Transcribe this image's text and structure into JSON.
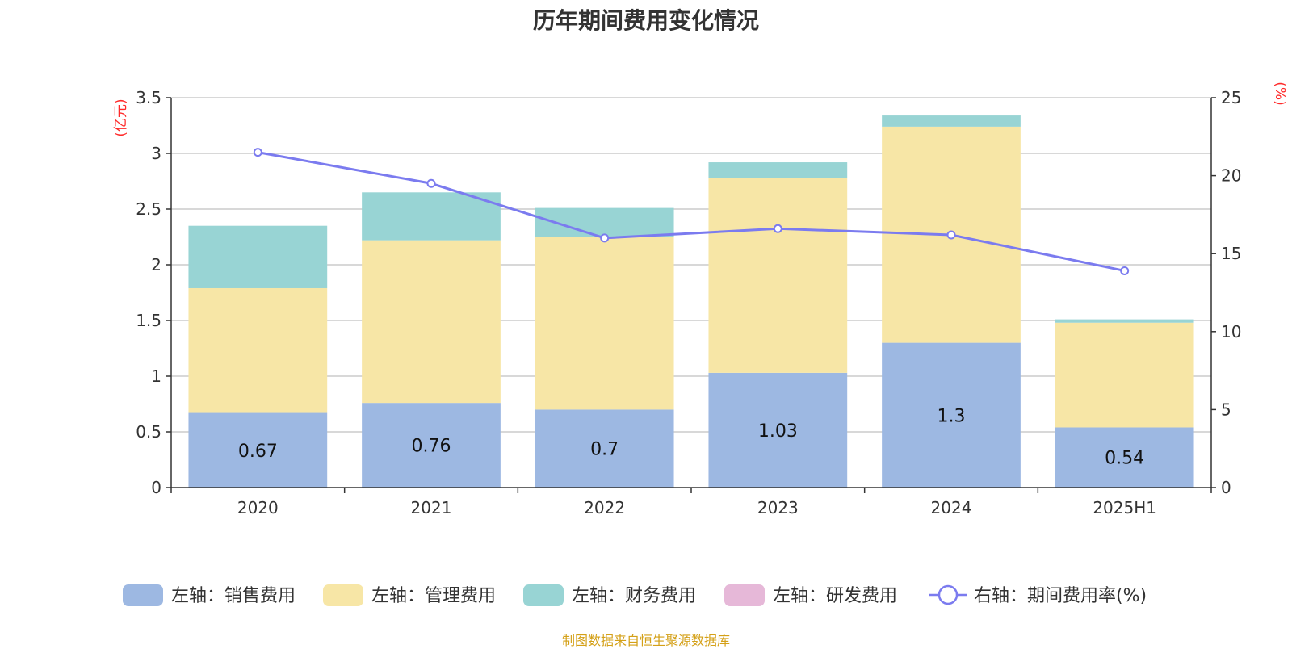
{
  "title": "历年期间费用变化情况",
  "source": "制图数据来自恒生聚源数据库",
  "chart_data": {
    "type": "bar",
    "stacked": true,
    "categories": [
      "2020",
      "2021",
      "2022",
      "2023",
      "2024",
      "2025H1"
    ],
    "left_axis": {
      "unit": "(亿元)",
      "ylim": [
        0,
        3.5
      ],
      "ticks": [
        "0",
        "0.5",
        "1",
        "1.5",
        "2",
        "2.5",
        "3",
        "3.5"
      ]
    },
    "right_axis": {
      "unit": "(%)",
      "ylim": [
        0,
        25
      ],
      "ticks": [
        "0",
        "5",
        "10",
        "15",
        "20",
        "25"
      ]
    },
    "grid": true,
    "legend_position": "bottom",
    "series": [
      {
        "name": "左轴：销售费用",
        "type": "bar",
        "axis": "left",
        "color": "#9db8e2",
        "values": [
          0.67,
          0.76,
          0.7,
          1.03,
          1.3,
          0.54
        ],
        "labels": [
          "0.67",
          "0.76",
          "0.7",
          "1.03",
          "1.3",
          "0.54"
        ]
      },
      {
        "name": "左轴：管理费用",
        "type": "bar",
        "axis": "left",
        "color": "#f7e6a6",
        "values": [
          1.12,
          1.46,
          1.55,
          1.75,
          1.94,
          0.94
        ]
      },
      {
        "name": "左轴：财务费用",
        "type": "bar",
        "axis": "left",
        "color": "#98d4d4",
        "values": [
          0.56,
          0.43,
          0.26,
          0.14,
          0.1,
          0.03
        ]
      },
      {
        "name": "左轴：研发费用",
        "type": "bar",
        "axis": "left",
        "color": "#e6b8d8",
        "values": [
          0,
          0,
          0,
          0,
          0,
          0
        ]
      },
      {
        "name": "右轴：期间费用率(%)",
        "type": "line",
        "axis": "right",
        "color": "#7b7bef",
        "values": [
          21.5,
          19.5,
          16.0,
          16.6,
          16.2,
          13.9
        ]
      }
    ]
  }
}
